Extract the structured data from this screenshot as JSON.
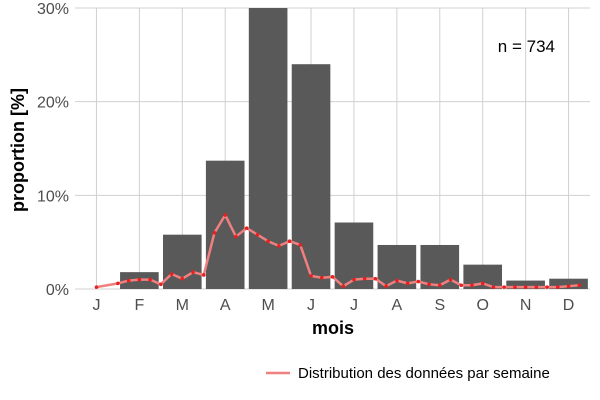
{
  "chart_data": {
    "type": "bar",
    "xlabel": "mois",
    "ylabel": "proportion [%]",
    "ylim": [
      0,
      30
    ],
    "y_ticks": [
      0,
      10,
      20,
      30
    ],
    "y_tick_labels": [
      "0%",
      "10%",
      "20%",
      "30%"
    ],
    "categories": [
      "J",
      "F",
      "M",
      "A",
      "M",
      "J",
      "J",
      "A",
      "S",
      "O",
      "N",
      "D"
    ],
    "values": [
      0,
      1.8,
      5.8,
      13.7,
      30.3,
      24.0,
      7.1,
      4.7,
      4.7,
      2.6,
      0.9,
      1.1
    ],
    "annotation": "n = 734",
    "grid": true,
    "bar_color": "#595959",
    "line_series": {
      "name": "Distribution des données par semaine",
      "color": "#f07f7f",
      "marker_color": "#e6211f",
      "x_month": [
        0.5,
        1.0,
        1.25,
        1.5,
        1.75,
        2.0,
        2.25,
        2.5,
        2.75,
        3.0,
        3.25,
        3.5,
        3.75,
        4.0,
        4.25,
        4.5,
        4.75,
        5.0,
        5.25,
        5.5,
        5.75,
        6.0,
        6.25,
        6.5,
        6.75,
        7.0,
        7.25,
        7.5,
        7.75,
        8.0,
        8.25,
        8.5,
        8.75,
        9.0,
        9.25,
        9.5,
        9.75,
        10.0,
        10.25,
        10.5,
        10.75,
        11.0,
        11.25,
        11.5,
        11.75
      ],
      "values": [
        0.2,
        0.6,
        0.9,
        1.0,
        1.0,
        0.5,
        1.6,
        1.1,
        1.8,
        1.5,
        6.0,
        7.9,
        5.6,
        6.5,
        5.8,
        5.1,
        4.6,
        5.1,
        4.7,
        1.4,
        1.2,
        1.3,
        0.3,
        1.0,
        1.1,
        1.1,
        0.3,
        0.9,
        0.6,
        0.8,
        0.5,
        0.4,
        1.0,
        0.4,
        0.4,
        0.6,
        0.2,
        0.2,
        0.2,
        0.2,
        0.2,
        0.2,
        0.2,
        0.3,
        0.4
      ]
    },
    "legend": {
      "position": "bottom-right"
    }
  }
}
